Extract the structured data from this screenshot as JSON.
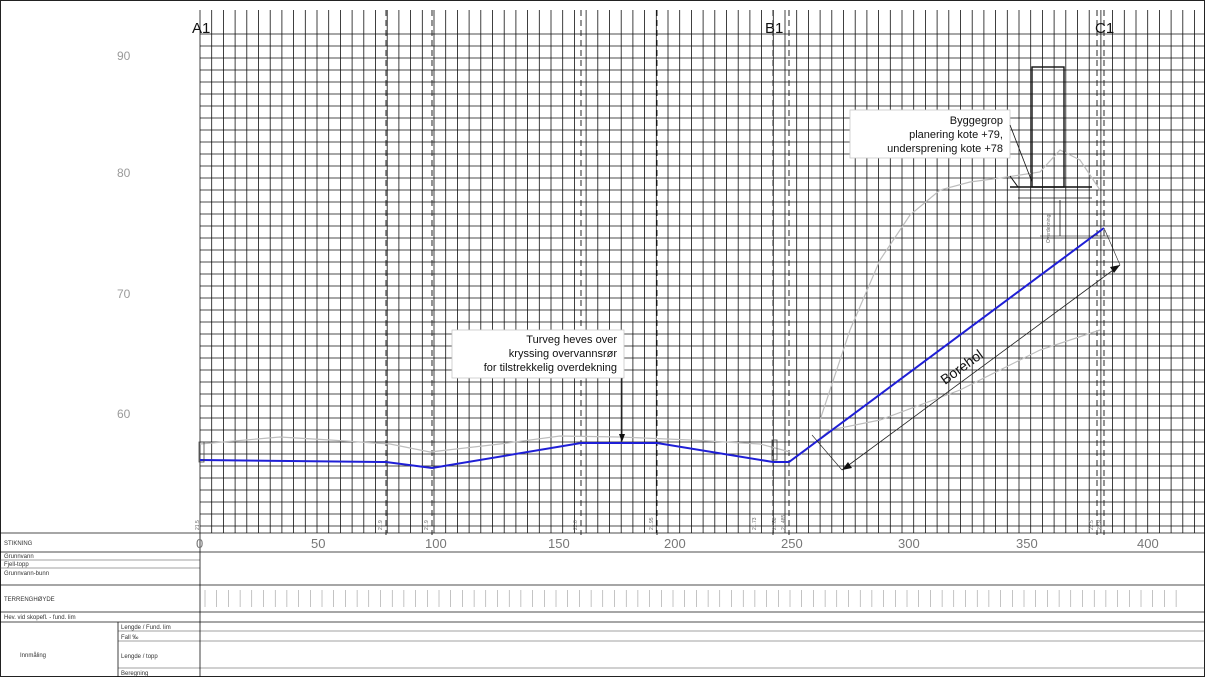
{
  "section_markers": [
    "A1",
    "B1",
    "C1"
  ],
  "elevation_labels": [
    "90",
    "80",
    "70",
    "60"
  ],
  "distance_labels": [
    "0",
    "50",
    "100",
    "150",
    "200",
    "250",
    "300",
    "350",
    "400"
  ],
  "annotation_turveg": {
    "line1": "Turveg heves over",
    "line2": "kryssing overvannsrør",
    "line3": "for tilstrekkelig overdekning"
  },
  "annotation_byggegrop": {
    "line1": "Byggegrop",
    "line2": "planering kote +79,",
    "line3": "undersprening kote +78"
  },
  "borehole_label": "Borehol",
  "overdekning_label": "Overdekning",
  "table": {
    "stikning": "STIKNING",
    "rows": [
      "Grunnvann",
      "Fjell-topp",
      "Grunnvann-bunn"
    ],
    "terrain_row": "TERRENGHØYDE",
    "height_row": "Hev. vid skopefl. - fund. lim",
    "sub_row_1": "Lengde / Fund. lim",
    "sub_row_2": "Fall ‰",
    "side_label": "Innmåling",
    "sub_row_3": "Lengde / topp",
    "sub_row_4": "Beregning"
  },
  "colors": {
    "profile": "#1f1fd6",
    "terrain": "#bdbdbd",
    "grid": "#111111"
  }
}
